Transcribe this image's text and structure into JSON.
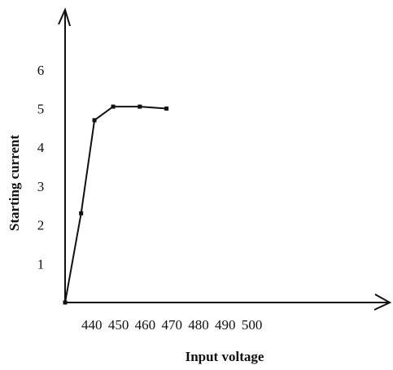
{
  "chart_data": {
    "type": "line",
    "title": "",
    "xlabel": "Input voltage",
    "ylabel": "Starting current",
    "x_ticks": [
      "440",
      "450",
      "460",
      "470",
      "480",
      "490",
      "500"
    ],
    "y_ticks": [
      "1",
      "2",
      "3",
      "4",
      "5",
      "6"
    ],
    "series": [
      {
        "name": "",
        "x": [
          430,
          436,
          441,
          448,
          458,
          468
        ],
        "y": [
          0,
          2.3,
          4.7,
          5.05,
          5.05,
          5.0
        ]
      }
    ],
    "grid": false,
    "legend": "none"
  }
}
